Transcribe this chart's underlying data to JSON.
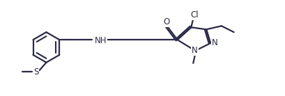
{
  "background_color": "#ffffff",
  "line_color": "#2a2a4a",
  "line_width": 1.6,
  "font_size": 8.5,
  "figsize": [
    4.1,
    1.38
  ],
  "dpi": 100,
  "xlim": [
    0,
    41
  ],
  "ylim": [
    0,
    13.8
  ]
}
